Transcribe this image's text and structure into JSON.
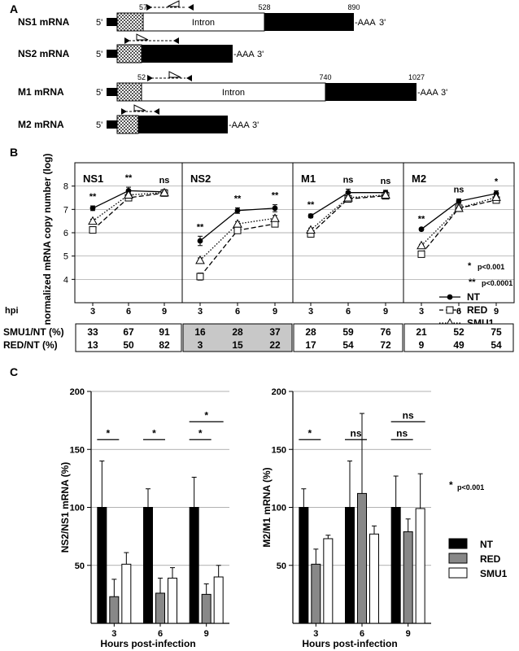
{
  "panel_letters": {
    "a": "A",
    "b": "B",
    "c": "C"
  },
  "section_a": {
    "five_prime": "5'",
    "three_prime": "3'",
    "polyA": "-AAA",
    "constructs": [
      {
        "label": "NS1 mRNA",
        "marker_start": "57",
        "marker_intron_end": "528",
        "marker_end": "890",
        "intron_label": "Intron"
      },
      {
        "label": "NS2 mRNA"
      },
      {
        "label": "M1 mRNA",
        "marker_start": "52",
        "marker_intron_end": "740",
        "marker_end": "1027",
        "intron_label": "Intron"
      },
      {
        "label": "M2 mRNA"
      }
    ]
  },
  "section_b": {
    "ylabel": "normalized mRNA copy number (log)",
    "hpi_label": "hpi",
    "ratio_labels": [
      "SMU1/NT (%)",
      "RED/NT (%)"
    ],
    "sig_legend": [
      {
        "mark": "*",
        "text": "p<0.001"
      },
      {
        "mark": "**",
        "text": "p<0.0001"
      }
    ],
    "legend": [
      "NT",
      "RED",
      "SMU1"
    ]
  },
  "section_c": {
    "xlabel": "Hours post-infection",
    "legend": [
      "NT",
      "RED",
      "SMU1"
    ],
    "sig_note": {
      "mark": "*",
      "text": "p<0.001"
    }
  },
  "chart_data": [
    {
      "type": "line",
      "title": "NS1",
      "x": [
        3,
        6,
        9
      ],
      "ylim": [
        3,
        9
      ],
      "yticks": [
        4,
        5,
        6,
        7,
        8
      ],
      "series": [
        {
          "name": "NT",
          "values": [
            7.05,
            7.8,
            7.75
          ],
          "errors": [
            0.1,
            0.15,
            0.1
          ]
        },
        {
          "name": "RED",
          "values": [
            6.12,
            7.5,
            7.7
          ],
          "errors": [
            0.1,
            0.08,
            0.08
          ]
        },
        {
          "name": "SMU1",
          "values": [
            6.5,
            7.62,
            7.72
          ],
          "errors": [
            0.08,
            0.08,
            0.06
          ]
        }
      ],
      "significance": [
        "**",
        "**",
        "ns"
      ],
      "ratios": {
        "SMU1/NT (%)": [
          33,
          67,
          91
        ],
        "RED/NT (%)": [
          13,
          50,
          82
        ]
      },
      "ratios_shaded": false
    },
    {
      "type": "line",
      "title": "NS2",
      "x": [
        3,
        6,
        9
      ],
      "ylim": [
        3,
        9
      ],
      "series": [
        {
          "name": "NT",
          "values": [
            5.65,
            6.95,
            7.05
          ],
          "errors": [
            0.2,
            0.12,
            0.15
          ]
        },
        {
          "name": "RED",
          "values": [
            4.12,
            6.1,
            6.38
          ],
          "errors": [
            0.15,
            0.1,
            0.1
          ]
        },
        {
          "name": "SMU1",
          "values": [
            4.82,
            6.38,
            6.62
          ],
          "errors": [
            0.1,
            0.1,
            0.12
          ]
        }
      ],
      "significance": [
        "**",
        "**",
        "**"
      ],
      "ratios": {
        "SMU1/NT (%)": [
          16,
          28,
          37
        ],
        "RED/NT (%)": [
          3,
          15,
          22
        ]
      },
      "ratios_shaded": true
    },
    {
      "type": "line",
      "title": "M1",
      "x": [
        3,
        6,
        9
      ],
      "ylim": [
        3,
        9
      ],
      "series": [
        {
          "name": "NT",
          "values": [
            6.72,
            7.72,
            7.72
          ],
          "errors": [
            0.08,
            0.15,
            0.1
          ]
        },
        {
          "name": "RED",
          "values": [
            5.95,
            7.45,
            7.58
          ],
          "errors": [
            0.1,
            0.08,
            0.08
          ]
        },
        {
          "name": "SMU1",
          "values": [
            6.12,
            7.5,
            7.62
          ],
          "errors": [
            0.08,
            0.08,
            0.08
          ]
        }
      ],
      "significance": [
        "**",
        "ns",
        "ns"
      ],
      "ratios": {
        "SMU1/NT (%)": [
          28,
          59,
          76
        ],
        "RED/NT (%)": [
          17,
          54,
          72
        ]
      },
      "ratios_shaded": false
    },
    {
      "type": "line",
      "title": "M2",
      "x": [
        3,
        6,
        9
      ],
      "ylim": [
        3,
        9
      ],
      "series": [
        {
          "name": "NT",
          "values": [
            6.15,
            7.35,
            7.68
          ],
          "errors": [
            0.05,
            0.1,
            0.12
          ]
        },
        {
          "name": "RED",
          "values": [
            5.08,
            7.05,
            7.4
          ],
          "errors": [
            0.08,
            0.08,
            0.08
          ]
        },
        {
          "name": "SMU1",
          "values": [
            5.45,
            7.05,
            7.52
          ],
          "errors": [
            0.05,
            0.06,
            0.08
          ]
        }
      ],
      "significance": [
        "**",
        "ns",
        "*"
      ],
      "ratios": {
        "SMU1/NT (%)": [
          21,
          52,
          75
        ],
        "RED/NT (%)": [
          9,
          49,
          54
        ]
      },
      "ratios_shaded": false
    },
    {
      "type": "bar",
      "ylabel": "NS2/NS1 mRNA (%)",
      "xlabel": "Hours post-infection",
      "categories": [
        "3",
        "6",
        "9"
      ],
      "ylim": [
        0,
        200
      ],
      "yticks": [
        50,
        100,
        150,
        200
      ],
      "series": [
        {
          "name": "NT",
          "values": [
            100,
            100,
            100
          ],
          "errors": [
            40,
            16,
            26
          ]
        },
        {
          "name": "RED",
          "values": [
            23,
            26,
            25
          ],
          "errors": [
            15,
            13,
            9
          ]
        },
        {
          "name": "SMU1",
          "values": [
            51,
            39,
            40
          ],
          "errors": [
            10,
            9,
            10
          ]
        }
      ],
      "significance": [
        {
          "category": 0,
          "pair": [
            "NT",
            "RED"
          ],
          "label": "*"
        },
        {
          "category": 1,
          "pair": [
            "NT",
            "RED"
          ],
          "label": "*"
        },
        {
          "category": 2,
          "pair": [
            "NT",
            "RED"
          ],
          "label": "*"
        },
        {
          "category": 2,
          "pair": [
            "NT",
            "SMU1"
          ],
          "label": "*"
        }
      ]
    },
    {
      "type": "bar",
      "ylabel": "M2/M1 mRNA (%)",
      "xlabel": "Hours post-infection",
      "categories": [
        "3",
        "6",
        "9"
      ],
      "ylim": [
        0,
        200
      ],
      "yticks": [
        50,
        100,
        150,
        200
      ],
      "series": [
        {
          "name": "NT",
          "values": [
            100,
            100,
            100
          ],
          "errors": [
            16,
            40,
            27
          ]
        },
        {
          "name": "RED",
          "values": [
            51,
            112,
            79
          ],
          "errors": [
            13,
            69,
            11
          ]
        },
        {
          "name": "SMU1",
          "values": [
            73,
            77,
            99
          ],
          "errors": [
            3,
            7,
            30
          ]
        }
      ],
      "significance": [
        {
          "category": 0,
          "pair": [
            "NT",
            "RED"
          ],
          "label": "*"
        },
        {
          "category": 1,
          "pair": [
            "NT",
            "RED"
          ],
          "label": "ns"
        },
        {
          "category": 2,
          "pair": [
            "NT",
            "RED"
          ],
          "label": "ns"
        },
        {
          "category": 2,
          "pair": [
            "NT",
            "SMU1"
          ],
          "label": "ns"
        }
      ]
    }
  ]
}
